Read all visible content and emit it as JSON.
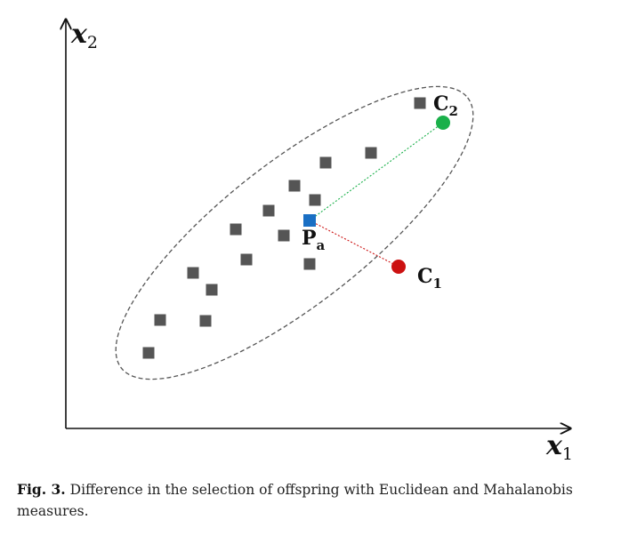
{
  "axes": {
    "x_symbol": "x",
    "x_subscript": "1",
    "y_symbol": "x",
    "y_subscript": "2"
  },
  "points": {
    "parent": {
      "symbol": "P",
      "subscript": "a",
      "color": "#1a6fc4"
    },
    "child1": {
      "symbol": "C",
      "subscript": "1",
      "color": "#cc1111"
    },
    "child2": {
      "symbol": "C",
      "subscript": "2",
      "color": "#1ab04a"
    },
    "population_color": "#555555"
  },
  "caption": {
    "label": "Fig. 3.",
    "text": "Difference in the selection of offspring with Euclidean and Mahalanobis measures."
  }
}
